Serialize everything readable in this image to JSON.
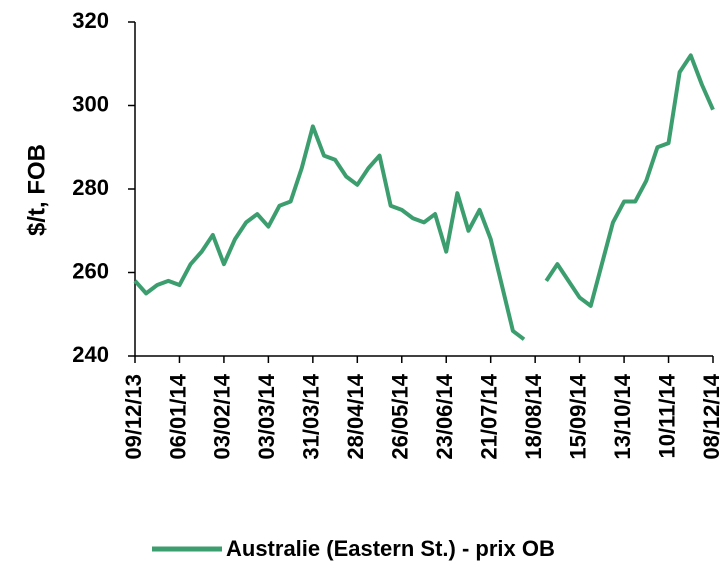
{
  "chart_data": {
    "type": "line",
    "y_label": "$/t, FOB",
    "categories": [
      "09/12/13",
      null,
      null,
      null,
      "06/01/14",
      null,
      null,
      null,
      "03/02/14",
      null,
      null,
      null,
      "03/03/14",
      null,
      null,
      null,
      "31/03/14",
      null,
      null,
      null,
      "28/04/14",
      null,
      null,
      null,
      "26/05/14",
      null,
      null,
      null,
      "23/06/14",
      null,
      null,
      null,
      "21/07/14",
      null,
      null,
      null,
      "18/08/14",
      null,
      null,
      null,
      "15/09/14",
      null,
      null,
      null,
      "13/10/14",
      null,
      null,
      null,
      "10/11/14",
      null,
      null,
      null,
      "08/12/14"
    ],
    "series": [
      {
        "name": "Australie (Eastern St.) - prix OB",
        "color": "#3c9e6e",
        "values": [
          258,
          255,
          257,
          258,
          257,
          262,
          265,
          269,
          262,
          268,
          272,
          274,
          271,
          276,
          277,
          285,
          295,
          288,
          287,
          283,
          281,
          285,
          288,
          276,
          275,
          273,
          272,
          274,
          265,
          279,
          270,
          275,
          268,
          257,
          246,
          244,
          null,
          258,
          262,
          258,
          254,
          252,
          262,
          272,
          277,
          277,
          282,
          290,
          291,
          308,
          312,
          305,
          299
        ]
      }
    ],
    "ylim": [
      240,
      320
    ],
    "yticks": [
      240,
      260,
      280,
      300,
      320
    ],
    "legend": "bottom"
  }
}
